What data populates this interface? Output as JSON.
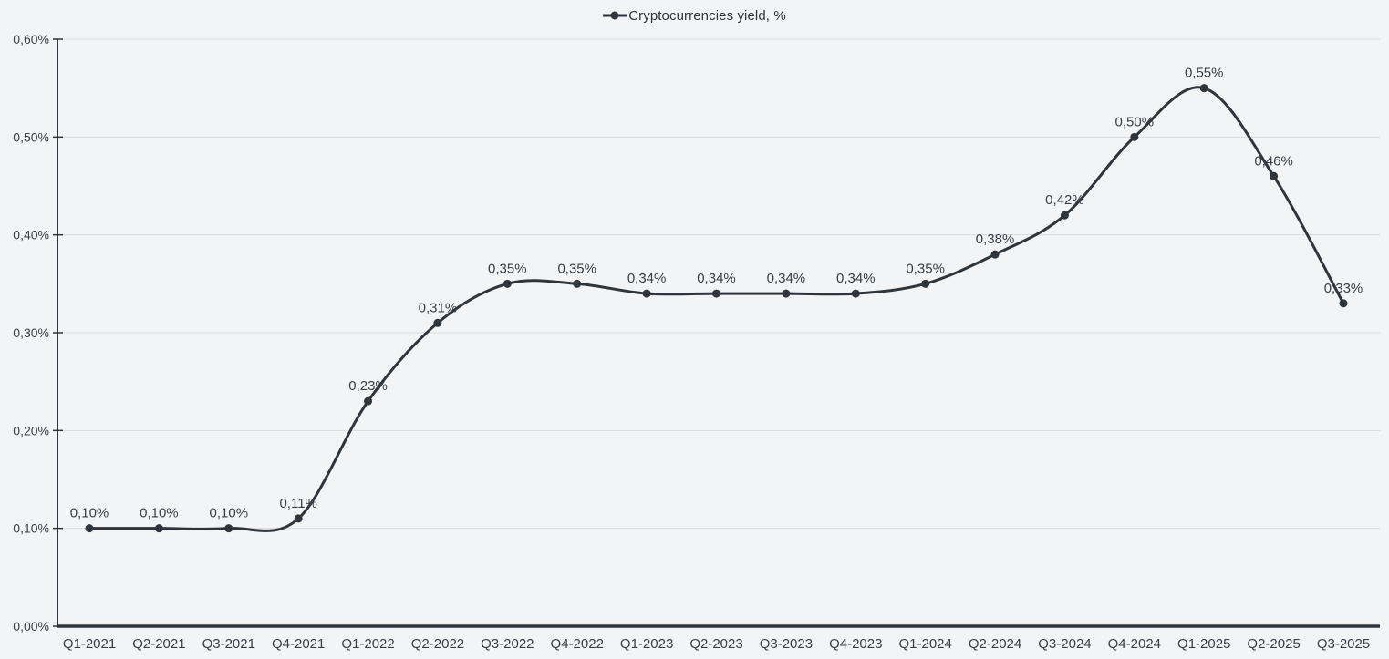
{
  "chart_data": {
    "type": "line",
    "series_name": "Cryptocurrencies yield, %",
    "categories": [
      "Q1-2021",
      "Q2-2021",
      "Q3-2021",
      "Q4-2021",
      "Q1-2022",
      "Q2-2022",
      "Q3-2022",
      "Q4-2022",
      "Q1-2023",
      "Q2-2023",
      "Q3-2023",
      "Q4-2023",
      "Q1-2024",
      "Q2-2024",
      "Q3-2024",
      "Q4-2024",
      "Q1-2025",
      "Q2-2025",
      "Q3-2025"
    ],
    "values": [
      0.1,
      0.1,
      0.1,
      0.11,
      0.23,
      0.31,
      0.35,
      0.35,
      0.34,
      0.34,
      0.34,
      0.34,
      0.35,
      0.38,
      0.42,
      0.5,
      0.55,
      0.46,
      0.33
    ],
    "point_labels": [
      "0,10%",
      "0,10%",
      "0,10%",
      "0,11%",
      "0,23%",
      "0,31%",
      "0,35%",
      "0,35%",
      "0,34%",
      "0,34%",
      "0,34%",
      "0,34%",
      "0,35%",
      "0,38%",
      "0,42%",
      "0,50%",
      "0,55%",
      "0,46%",
      "0,33%"
    ],
    "y_tick_values": [
      0,
      0.1,
      0.2,
      0.3,
      0.4,
      0.5,
      0.6
    ],
    "y_ticks": [
      "0,00%",
      "0,10%",
      "0,20%",
      "0,30%",
      "0,40%",
      "0,50%",
      "0,60%"
    ],
    "ylim": [
      0,
      0.6
    ],
    "xlabel": "",
    "ylabel": "",
    "title": "",
    "grid": "horizontal",
    "legend_position": "top-center",
    "smooth": true,
    "line_color": "#30353b",
    "axis_color": "#30353b",
    "gridline_color": "#d9dbde",
    "text_color": "#3a3f45",
    "background_color": "#f3f4f6"
  }
}
